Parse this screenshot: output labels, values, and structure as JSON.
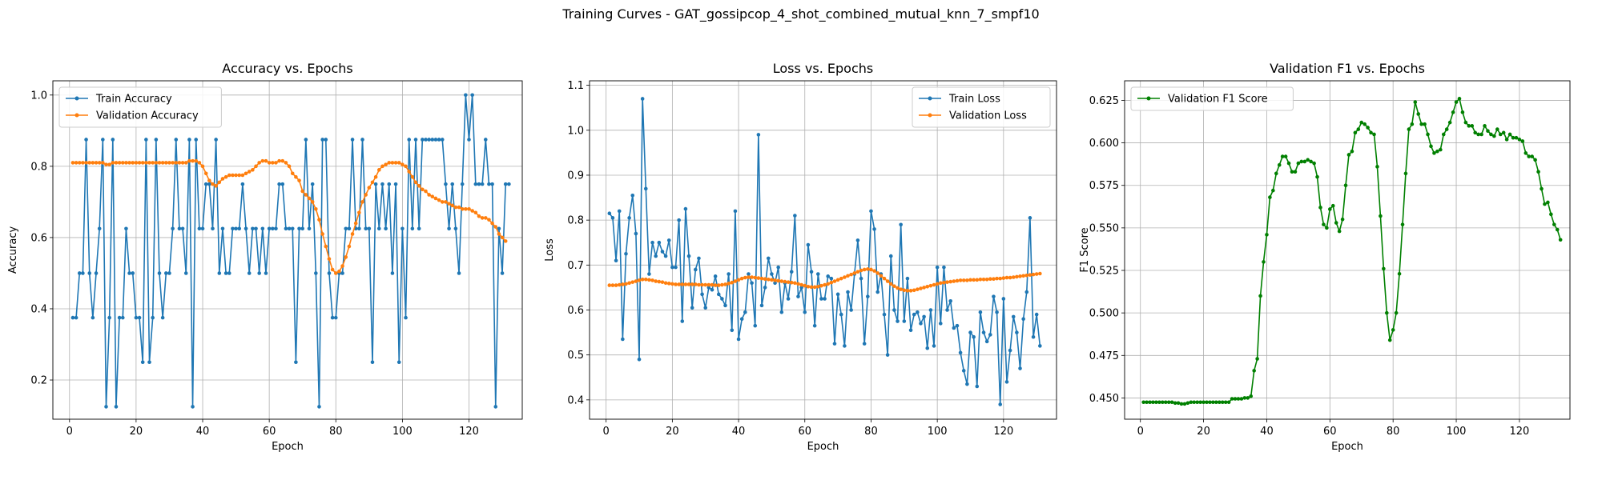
{
  "figure": {
    "suptitle": "Training Curves - GAT_gossipcop_4_shot_combined_mutual_knn_7_smpf10"
  },
  "chart_data": [
    {
      "type": "line",
      "title": "Accuracy vs. Epochs",
      "xlabel": "Epoch",
      "ylabel": "Accuracy",
      "xlim": [
        -5,
        136
      ],
      "ylim": [
        0.09,
        1.04
      ],
      "xticks": [
        0,
        20,
        40,
        60,
        80,
        100,
        120
      ],
      "yticks": [
        0.2,
        0.4,
        0.6,
        0.8,
        1.0
      ],
      "ytick_labels": [
        "0.2",
        "0.4",
        "0.6",
        "0.8",
        "1.0"
      ],
      "grid": true,
      "legend": "upper-left",
      "x_start": 1,
      "series": [
        {
          "name": "Train Accuracy",
          "color": "#1f77b4",
          "values": [
            0.375,
            0.375,
            0.5,
            0.5,
            0.875,
            0.5,
            0.375,
            0.5,
            0.625,
            0.875,
            0.125,
            0.375,
            0.875,
            0.125,
            0.375,
            0.375,
            0.625,
            0.5,
            0.5,
            0.375,
            0.375,
            0.25,
            0.875,
            0.25,
            0.375,
            0.875,
            0.5,
            0.375,
            0.5,
            0.5,
            0.625,
            0.875,
            0.625,
            0.625,
            0.5,
            0.875,
            0.125,
            0.875,
            0.625,
            0.625,
            0.75,
            0.75,
            0.625,
            0.875,
            0.5,
            0.625,
            0.5,
            0.5,
            0.625,
            0.625,
            0.625,
            0.75,
            0.625,
            0.5,
            0.625,
            0.625,
            0.5,
            0.625,
            0.5,
            0.625,
            0.625,
            0.625,
            0.75,
            0.75,
            0.625,
            0.625,
            0.625,
            0.25,
            0.625,
            0.625,
            0.875,
            0.625,
            0.75,
            0.5,
            0.125,
            0.875,
            0.875,
            0.5,
            0.375,
            0.375,
            0.5,
            0.5,
            0.625,
            0.625,
            0.875,
            0.625,
            0.625,
            0.875,
            0.625,
            0.625,
            0.25,
            0.75,
            0.625,
            0.75,
            0.625,
            0.75,
            0.5,
            0.75,
            0.25,
            0.625,
            0.375,
            0.875,
            0.625,
            0.875,
            0.625,
            0.875,
            0.875,
            0.875,
            0.875,
            0.875,
            0.875,
            0.875,
            0.75,
            0.625,
            0.75,
            0.625,
            0.5,
            0.75,
            1.0,
            0.875,
            1.0,
            0.75,
            0.75,
            0.75,
            0.875,
            0.75,
            0.75,
            0.125,
            0.625,
            0.5,
            0.75,
            0.75
          ]
        },
        {
          "name": "Validation Accuracy",
          "color": "#ff7f0e",
          "values": [
            0.81,
            0.81,
            0.81,
            0.81,
            0.81,
            0.81,
            0.81,
            0.81,
            0.81,
            0.81,
            0.805,
            0.805,
            0.81,
            0.81,
            0.81,
            0.81,
            0.81,
            0.81,
            0.81,
            0.81,
            0.81,
            0.81,
            0.81,
            0.81,
            0.81,
            0.81,
            0.81,
            0.81,
            0.81,
            0.81,
            0.81,
            0.81,
            0.81,
            0.81,
            0.81,
            0.815,
            0.815,
            0.815,
            0.81,
            0.8,
            0.78,
            0.76,
            0.75,
            0.745,
            0.755,
            0.765,
            0.77,
            0.775,
            0.775,
            0.775,
            0.775,
            0.775,
            0.78,
            0.785,
            0.79,
            0.8,
            0.81,
            0.815,
            0.815,
            0.81,
            0.81,
            0.81,
            0.815,
            0.815,
            0.81,
            0.8,
            0.78,
            0.77,
            0.76,
            0.73,
            0.72,
            0.71,
            0.7,
            0.68,
            0.65,
            0.61,
            0.575,
            0.54,
            0.51,
            0.5,
            0.505,
            0.52,
            0.545,
            0.575,
            0.61,
            0.64,
            0.67,
            0.7,
            0.72,
            0.74,
            0.755,
            0.77,
            0.79,
            0.8,
            0.805,
            0.81,
            0.81,
            0.81,
            0.81,
            0.805,
            0.8,
            0.785,
            0.77,
            0.755,
            0.745,
            0.735,
            0.73,
            0.72,
            0.715,
            0.71,
            0.705,
            0.7,
            0.7,
            0.695,
            0.69,
            0.685,
            0.685,
            0.68,
            0.68,
            0.68,
            0.675,
            0.67,
            0.66,
            0.655,
            0.655,
            0.65,
            0.64,
            0.63,
            0.61,
            0.6,
            0.59
          ]
        }
      ]
    },
    {
      "type": "line",
      "title": "Loss vs. Epochs",
      "xlabel": "Epoch",
      "ylabel": "Loss",
      "xlim": [
        -5,
        136
      ],
      "ylim": [
        0.357,
        1.11
      ],
      "xticks": [
        0,
        20,
        40,
        60,
        80,
        100,
        120
      ],
      "yticks": [
        0.4,
        0.5,
        0.6,
        0.7,
        0.8,
        0.9,
        1.0,
        1.1
      ],
      "ytick_labels": [
        "0.4",
        "0.5",
        "0.6",
        "0.7",
        "0.8",
        "0.9",
        "1.0",
        "1.1"
      ],
      "grid": true,
      "legend": "upper-right",
      "x_start": 1,
      "series": [
        {
          "name": "Train Loss",
          "color": "#1f77b4",
          "values": [
            0.815,
            0.805,
            0.71,
            0.82,
            0.535,
            0.725,
            0.805,
            0.855,
            0.77,
            0.49,
            1.07,
            0.87,
            0.68,
            0.75,
            0.72,
            0.75,
            0.73,
            0.72,
            0.755,
            0.695,
            0.695,
            0.8,
            0.575,
            0.825,
            0.72,
            0.605,
            0.69,
            0.715,
            0.635,
            0.605,
            0.65,
            0.645,
            0.675,
            0.635,
            0.625,
            0.61,
            0.68,
            0.555,
            0.82,
            0.535,
            0.58,
            0.595,
            0.68,
            0.66,
            0.565,
            0.99,
            0.61,
            0.65,
            0.715,
            0.68,
            0.66,
            0.695,
            0.595,
            0.66,
            0.625,
            0.685,
            0.81,
            0.63,
            0.65,
            0.595,
            0.745,
            0.685,
            0.565,
            0.68,
            0.625,
            0.625,
            0.675,
            0.67,
            0.525,
            0.635,
            0.59,
            0.52,
            0.64,
            0.6,
            0.68,
            0.755,
            0.67,
            0.525,
            0.63,
            0.82,
            0.78,
            0.64,
            0.68,
            0.59,
            0.5,
            0.72,
            0.6,
            0.575,
            0.79,
            0.575,
            0.67,
            0.555,
            0.59,
            0.595,
            0.57,
            0.585,
            0.515,
            0.6,
            0.52,
            0.695,
            0.57,
            0.695,
            0.6,
            0.62,
            0.56,
            0.565,
            0.505,
            0.465,
            0.435,
            0.55,
            0.54,
            0.43,
            0.595,
            0.55,
            0.53,
            0.545,
            0.63,
            0.595,
            0.39,
            0.625,
            0.44,
            0.51,
            0.585,
            0.55,
            0.47,
            0.58,
            0.64,
            0.805,
            0.54,
            0.59,
            0.52
          ]
        },
        {
          "name": "Validation Loss",
          "color": "#ff7f0e",
          "values": [
            0.655,
            0.655,
            0.655,
            0.656,
            0.657,
            0.658,
            0.66,
            0.662,
            0.664,
            0.666,
            0.668,
            0.668,
            0.667,
            0.666,
            0.664,
            0.663,
            0.662,
            0.66,
            0.659,
            0.658,
            0.657,
            0.657,
            0.657,
            0.657,
            0.657,
            0.657,
            0.657,
            0.656,
            0.656,
            0.656,
            0.656,
            0.656,
            0.655,
            0.655,
            0.656,
            0.657,
            0.659,
            0.661,
            0.664,
            0.667,
            0.67,
            0.672,
            0.673,
            0.673,
            0.672,
            0.671,
            0.67,
            0.669,
            0.668,
            0.667,
            0.666,
            0.665,
            0.664,
            0.663,
            0.662,
            0.661,
            0.66,
            0.658,
            0.656,
            0.654,
            0.652,
            0.651,
            0.651,
            0.652,
            0.654,
            0.656,
            0.658,
            0.661,
            0.664,
            0.667,
            0.67,
            0.673,
            0.676,
            0.679,
            0.682,
            0.685,
            0.688,
            0.69,
            0.691,
            0.69,
            0.687,
            0.682,
            0.676,
            0.67,
            0.664,
            0.658,
            0.653,
            0.649,
            0.646,
            0.644,
            0.643,
            0.643,
            0.644,
            0.646,
            0.648,
            0.65,
            0.652,
            0.654,
            0.656,
            0.658,
            0.66,
            0.661,
            0.662,
            0.663,
            0.664,
            0.665,
            0.666,
            0.666,
            0.666,
            0.667,
            0.667,
            0.667,
            0.668,
            0.668,
            0.668,
            0.669,
            0.669,
            0.67,
            0.67,
            0.671,
            0.672,
            0.672,
            0.673,
            0.674,
            0.675,
            0.676,
            0.677,
            0.678,
            0.679,
            0.68,
            0.681
          ]
        }
      ]
    },
    {
      "type": "line",
      "title": "Validation F1 vs. Epochs",
      "xlabel": "Epoch",
      "ylabel": "F1 Score",
      "xlim": [
        -5,
        136
      ],
      "ylim": [
        0.4375,
        0.6365
      ],
      "xticks": [
        0,
        20,
        40,
        60,
        80,
        100,
        120
      ],
      "yticks": [
        0.45,
        0.475,
        0.5,
        0.525,
        0.55,
        0.575,
        0.6,
        0.625
      ],
      "ytick_labels": [
        "0.450",
        "0.475",
        "0.500",
        "0.525",
        "0.550",
        "0.575",
        "0.600",
        "0.625"
      ],
      "grid": true,
      "legend": "upper-left",
      "x_start": 1,
      "series": [
        {
          "name": "Validation F1 Score",
          "color": "#008000",
          "values": [
            0.4475,
            0.4475,
            0.4475,
            0.4475,
            0.4475,
            0.4475,
            0.4475,
            0.4475,
            0.4475,
            0.4475,
            0.447,
            0.447,
            0.4465,
            0.4465,
            0.447,
            0.4475,
            0.4475,
            0.4475,
            0.4475,
            0.4475,
            0.4475,
            0.4475,
            0.4475,
            0.4475,
            0.4475,
            0.4475,
            0.4475,
            0.4475,
            0.4495,
            0.4495,
            0.4495,
            0.4495,
            0.45,
            0.45,
            0.451,
            0.466,
            0.473,
            0.51,
            0.53,
            0.546,
            0.568,
            0.572,
            0.582,
            0.587,
            0.592,
            0.592,
            0.588,
            0.583,
            0.583,
            0.588,
            0.589,
            0.589,
            0.59,
            0.589,
            0.588,
            0.58,
            0.562,
            0.552,
            0.55,
            0.561,
            0.563,
            0.553,
            0.548,
            0.555,
            0.575,
            0.593,
            0.595,
            0.606,
            0.608,
            0.612,
            0.611,
            0.609,
            0.606,
            0.605,
            0.586,
            0.557,
            0.526,
            0.5,
            0.484,
            0.49,
            0.5,
            0.523,
            0.552,
            0.582,
            0.608,
            0.611,
            0.624,
            0.617,
            0.611,
            0.611,
            0.605,
            0.598,
            0.594,
            0.595,
            0.596,
            0.605,
            0.608,
            0.612,
            0.618,
            0.624,
            0.626,
            0.618,
            0.612,
            0.61,
            0.61,
            0.606,
            0.605,
            0.605,
            0.61,
            0.607,
            0.605,
            0.604,
            0.608,
            0.605,
            0.606,
            0.602,
            0.605,
            0.603,
            0.603,
            0.602,
            0.601,
            0.594,
            0.592,
            0.592,
            0.59,
            0.583,
            0.573,
            0.564,
            0.565,
            0.558,
            0.552,
            0.549,
            0.543
          ]
        }
      ]
    }
  ]
}
